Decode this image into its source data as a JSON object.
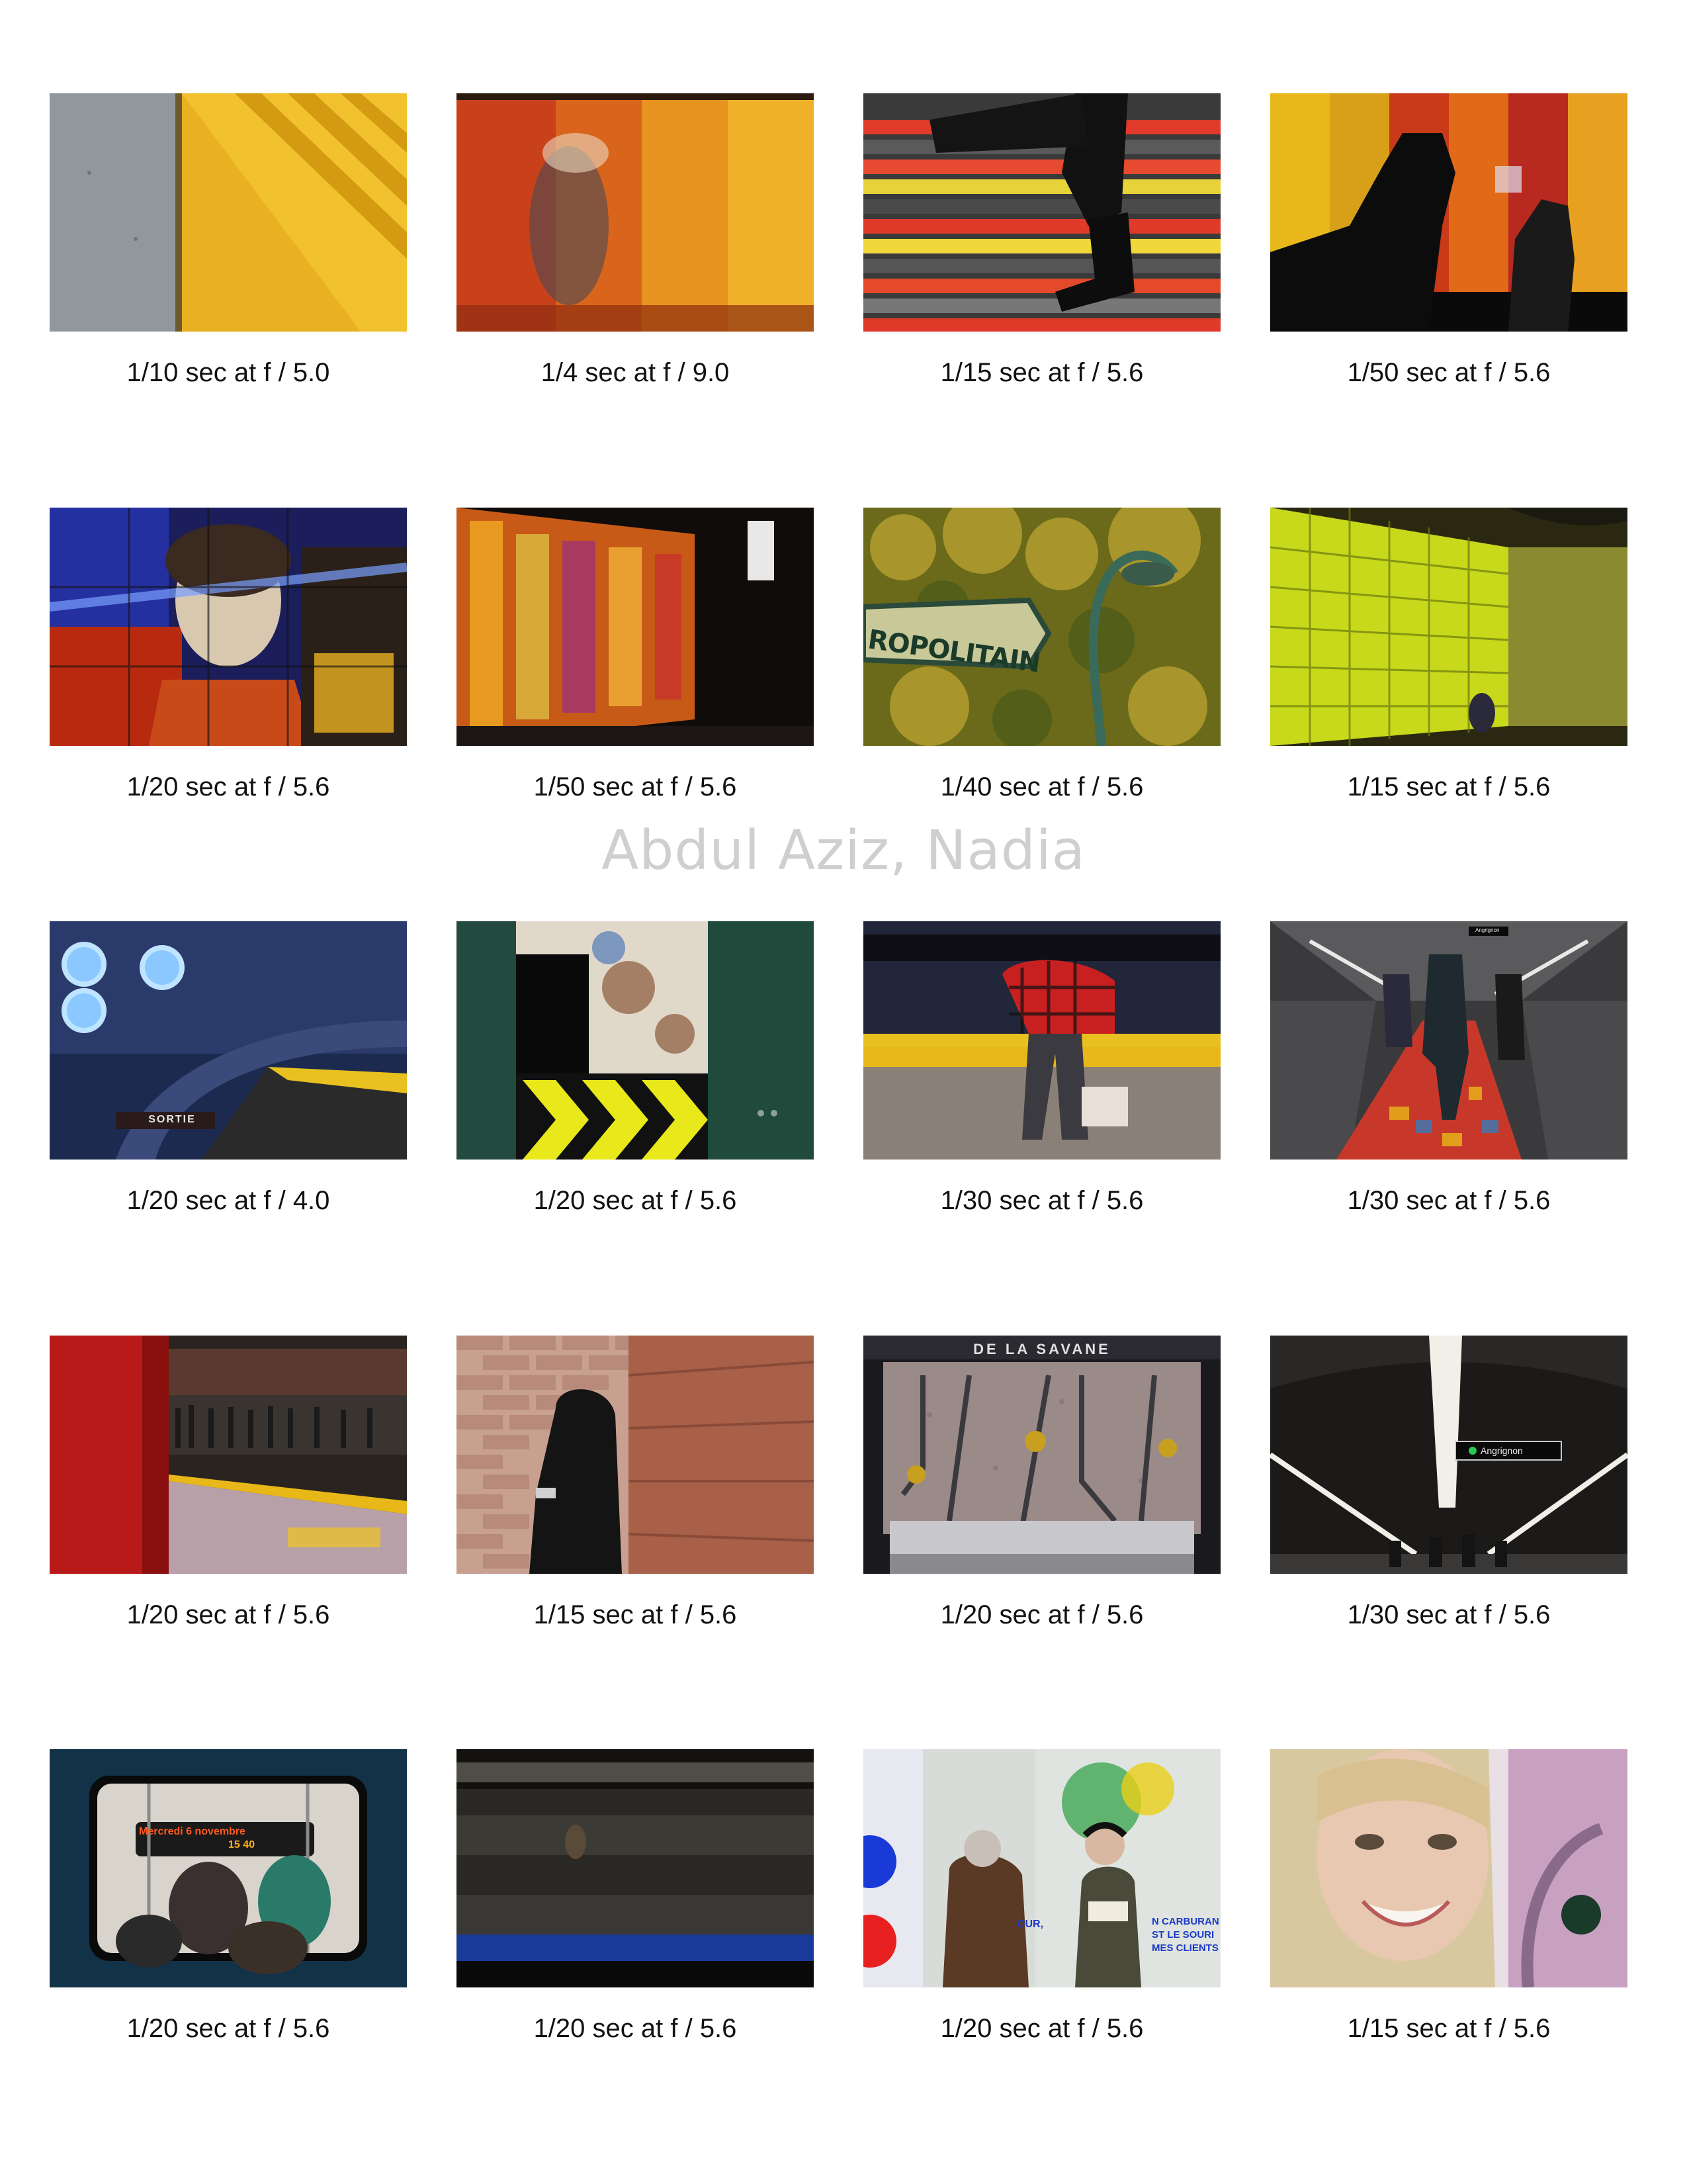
{
  "watermark": "Abdul Aziz, Nadia",
  "photos": [
    {
      "caption": "1/10 sec at f / 5.0"
    },
    {
      "caption": "1/4 sec at f / 9.0"
    },
    {
      "caption": "1/15 sec at f / 5.6"
    },
    {
      "caption": "1/50 sec at f / 5.6"
    },
    {
      "caption": "1/20 sec at f / 5.6"
    },
    {
      "caption": "1/50 sec at f / 5.6"
    },
    {
      "caption": "1/40 sec at f / 5.6",
      "sign_text": "ROPOLITAIN"
    },
    {
      "caption": "1/15 sec at f / 5.6"
    },
    {
      "caption": "1/20 sec at f / 4.0",
      "sign_text": "SORTIE"
    },
    {
      "caption": "1/20 sec at f / 5.6"
    },
    {
      "caption": "1/30 sec at f / 5.6"
    },
    {
      "caption": "1/30 sec at f / 5.6",
      "sign_text": "Angrignon"
    },
    {
      "caption": "1/20 sec at f / 5.6"
    },
    {
      "caption": "1/15 sec at f / 5.6"
    },
    {
      "caption": "1/20 sec at f / 5.6",
      "sign_text": "DE LA SAVANE"
    },
    {
      "caption": "1/30 sec at f / 5.6",
      "sign_text": "Angrignon"
    },
    {
      "caption": "1/20 sec at f / 5.6",
      "sign_text": "Mercredi 6 novembre",
      "sign_time": "15 40"
    },
    {
      "caption": "1/20 sec at f / 5.6"
    },
    {
      "caption": "1/20 sec at f / 5.6",
      "ad_text_1": "OUR,",
      "ad_text_2": "N CARBURAN",
      "ad_text_3": "ST LE SOURI",
      "ad_text_4": "MES CLIENTS"
    },
    {
      "caption": "1/15 sec at f / 5.6"
    }
  ]
}
